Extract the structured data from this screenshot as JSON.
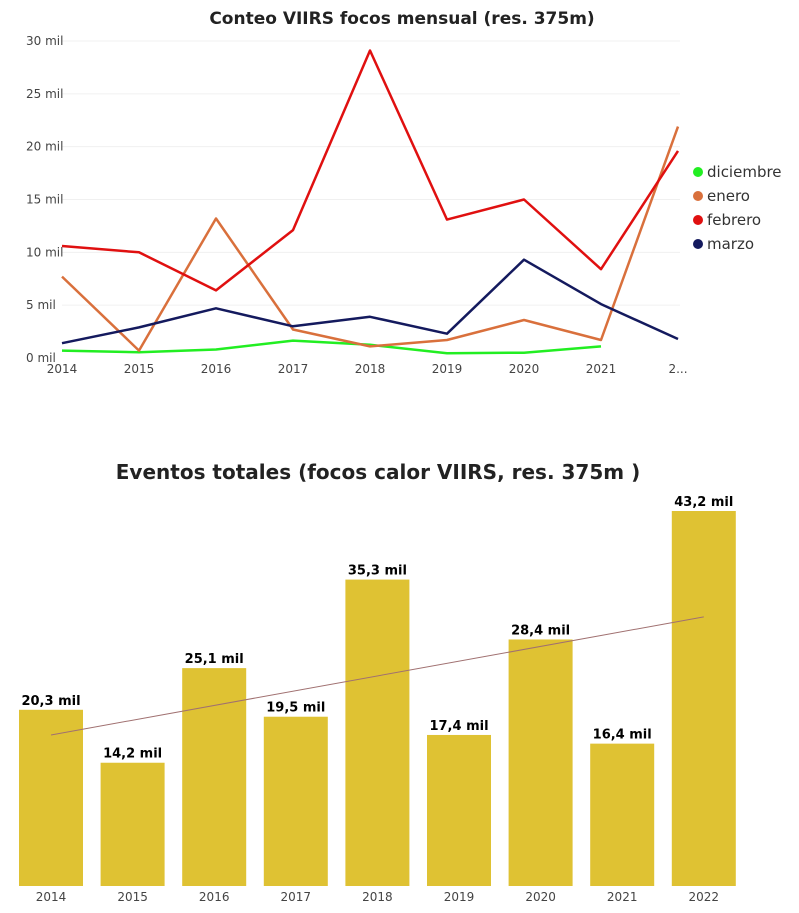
{
  "chart_data": [
    {
      "type": "line",
      "title": "Conteo VIIRS focos mensual (res. 375m)",
      "x": [
        "2014",
        "2015",
        "2016",
        "2017",
        "2018",
        "2019",
        "2020",
        "2021",
        "2..."
      ],
      "y_ticks": [
        "0 mil",
        "5 mil",
        "10 mil",
        "15 mil",
        "20 mil",
        "25 mil",
        "30 mil"
      ],
      "ylim": [
        0,
        30000
      ],
      "legend_position": "right",
      "series": [
        {
          "name": "diciembre",
          "color": "#22ee22",
          "values": [
            700,
            550,
            800,
            1650,
            1250,
            450,
            500,
            1100,
            null
          ]
        },
        {
          "name": "enero",
          "color": "#d9703c",
          "values": [
            7700,
            700,
            13200,
            2700,
            1100,
            1700,
            3600,
            1700,
            21900
          ]
        },
        {
          "name": "febrero",
          "color": "#e01010",
          "values": [
            10600,
            10000,
            6400,
            12100,
            29100,
            13100,
            15000,
            8400,
            19600
          ]
        },
        {
          "name": "marzo",
          "color": "#141a5e",
          "values": [
            1400,
            2900,
            4700,
            3000,
            3900,
            2300,
            9300,
            5100,
            1800
          ]
        }
      ]
    },
    {
      "type": "bar",
      "title": "Eventos totales (focos calor VIIRS, res. 375m )",
      "categories": [
        "2014",
        "2015",
        "2016",
        "2017",
        "2018",
        "2019",
        "2020",
        "2021",
        "2022"
      ],
      "values": [
        20300,
        14200,
        25100,
        19500,
        35300,
        17400,
        28400,
        16400,
        43200
      ],
      "data_labels": [
        "20,3 mil",
        "14,2 mil",
        "25,1 mil",
        "19,5 mil",
        "35,3 mil",
        "17,4 mil",
        "28,4 mil",
        "16,4 mil",
        "43,2 mil"
      ],
      "bar_color": "#dfc233",
      "trendline": {
        "color": "#a07070",
        "start": 17400,
        "end": 31000
      }
    }
  ]
}
